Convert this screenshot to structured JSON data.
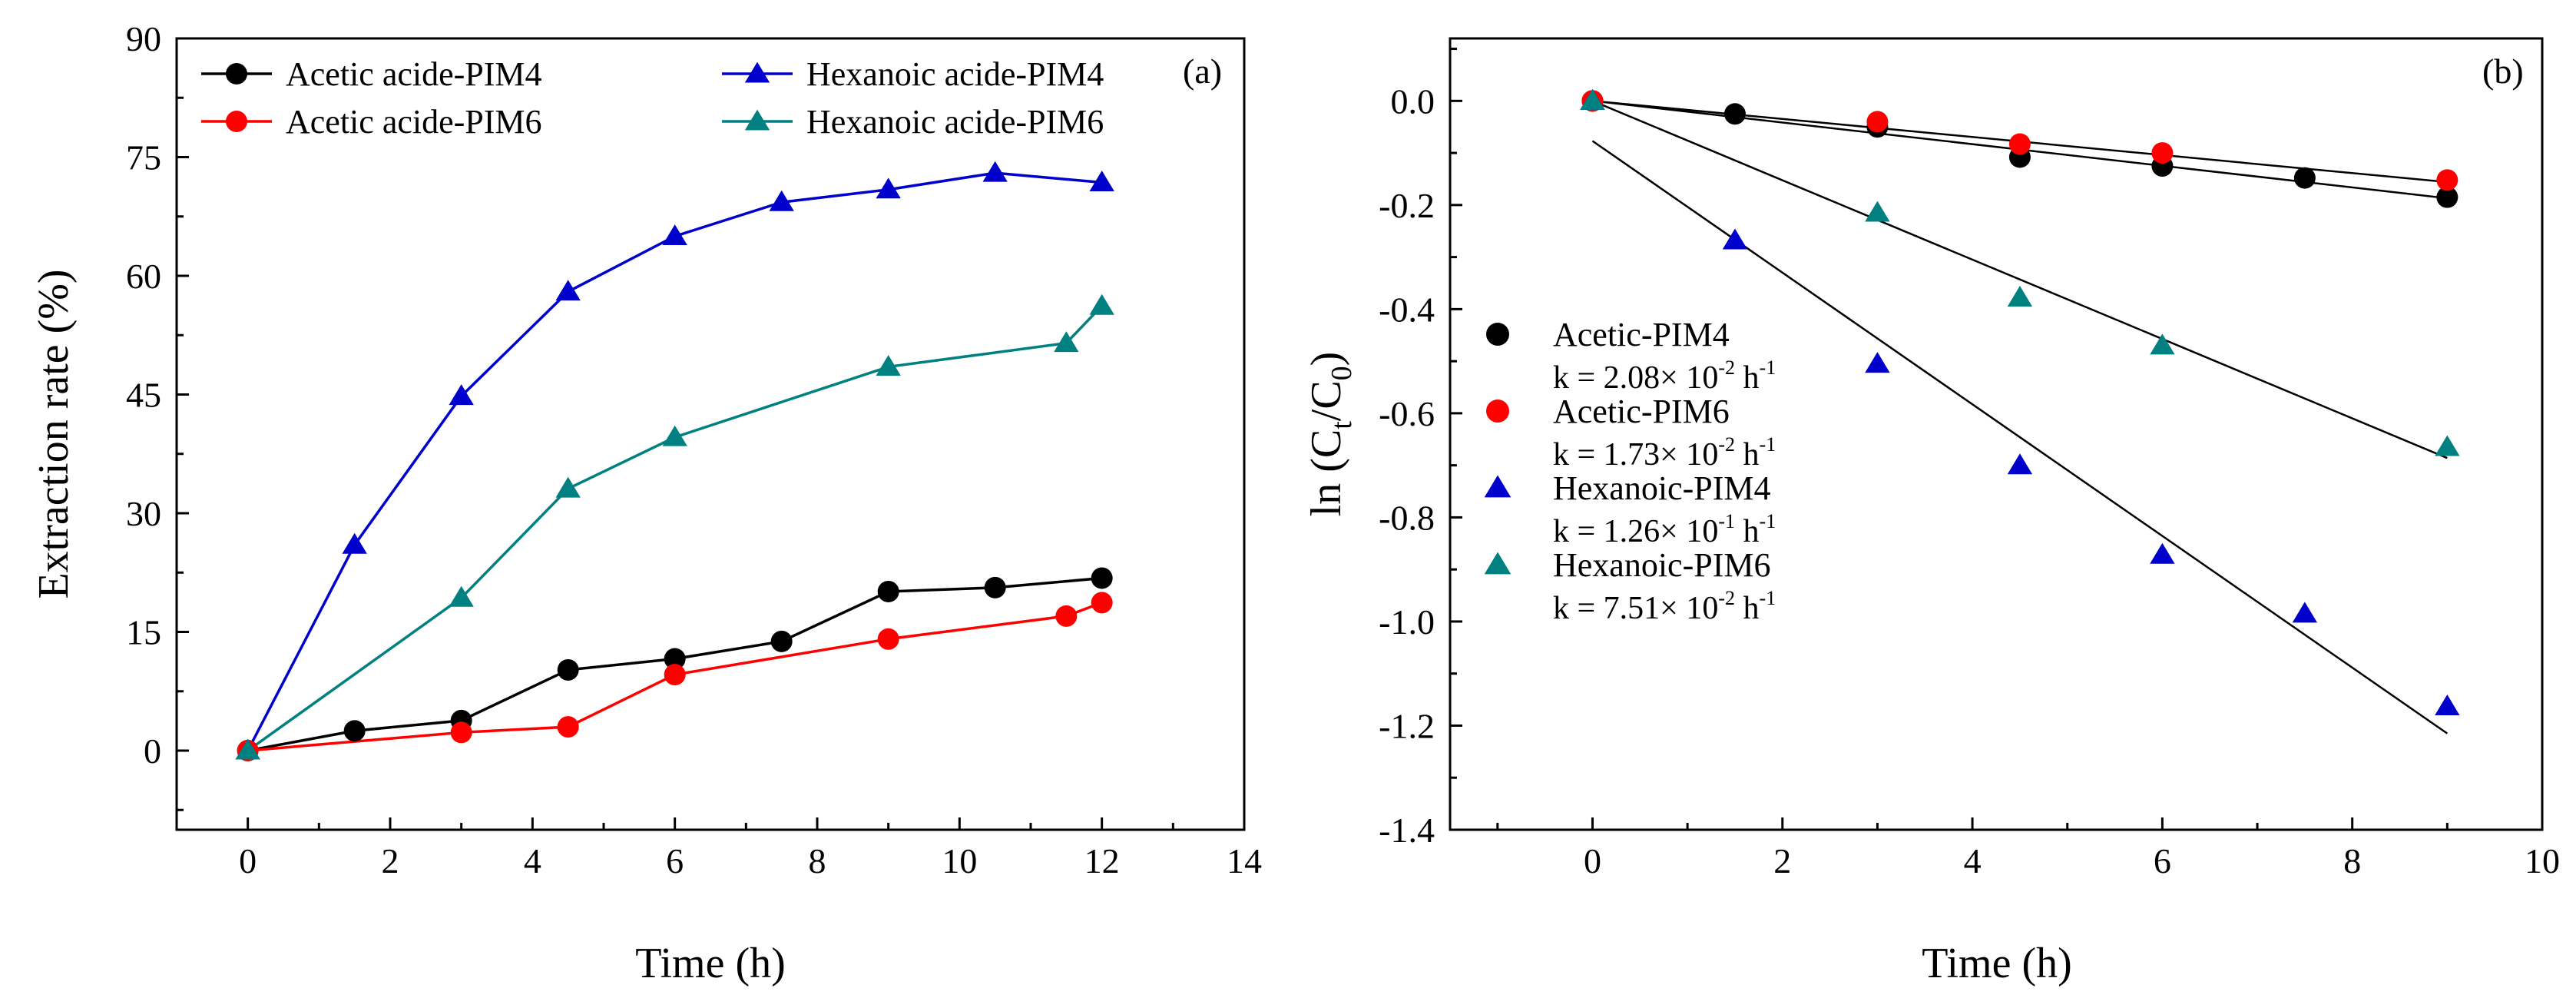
{
  "chart_data": [
    {
      "type": "line",
      "panel_label": "(a)",
      "xlabel": "Time (h)",
      "ylabel": "Extraction rate (%)",
      "xlim": [
        -1,
        14
      ],
      "ylim": [
        -10,
        90
      ],
      "xticks": [
        "0",
        "2",
        "4",
        "6",
        "8",
        "10",
        "12",
        "14"
      ],
      "yticks": [
        "0",
        "15",
        "30",
        "45",
        "60",
        "75",
        "90"
      ],
      "legend_position": "top",
      "series": [
        {
          "name": "Acetic acide-PIM4",
          "color": "#000000",
          "marker": "circle",
          "x": [
            0,
            1.5,
            3,
            4.5,
            6,
            7.5,
            9,
            10.5,
            12
          ],
          "y": [
            0,
            2.5,
            3.8,
            10.2,
            11.6,
            13.8,
            20.1,
            20.6,
            21.8
          ]
        },
        {
          "name": "Acetic acide-PIM6",
          "color": "#ff0000",
          "marker": "circle",
          "x": [
            0,
            3,
            4.5,
            6,
            9,
            11.5,
            12
          ],
          "y": [
            0,
            2.3,
            3.0,
            9.6,
            14.1,
            17.0,
            18.7
          ]
        },
        {
          "name": "Hexanoic acide-PIM4",
          "color": "#0000cc",
          "marker": "triangle",
          "x": [
            0,
            1.5,
            3,
            4.5,
            6,
            7.5,
            9,
            10.5,
            12
          ],
          "y": [
            0,
            26.0,
            44.8,
            58.0,
            65.0,
            69.3,
            70.9,
            73.0,
            71.8
          ]
        },
        {
          "name": "Hexanoic acide-PIM6",
          "color": "#008080",
          "marker": "triangle",
          "x": [
            0,
            3,
            4.5,
            6,
            9,
            11.5,
            12
          ],
          "y": [
            0,
            19.3,
            33.1,
            39.6,
            48.5,
            51.5,
            56.2
          ]
        }
      ]
    },
    {
      "type": "scatter",
      "panel_label": "(b)",
      "xlabel": "Time (h)",
      "ylabel_main": "ln (C",
      "ylabel_sub1": "t",
      "ylabel_mid": "/C",
      "ylabel_sub2": "0",
      "ylabel_end": ")",
      "xlim": [
        -1.5,
        10
      ],
      "ylim": [
        -1.4,
        0.12
      ],
      "xticks": [
        "0",
        "2",
        "4",
        "6",
        "8",
        "10"
      ],
      "yticks": [
        "0.0",
        "-0.2",
        "-0.4",
        "-0.6",
        "-0.8",
        "-1.0",
        "-1.2",
        "-1.4"
      ],
      "series": [
        {
          "name": "Acetic-PIM4",
          "color": "#000000",
          "marker": "circle",
          "k_prefix": "k = 2.08×  10",
          "k_exp": "-2",
          "k_unit": " h",
          "k_unit_exp": "-1",
          "x": [
            0,
            1.5,
            3,
            4.5,
            6,
            7.5,
            9
          ],
          "y": [
            0,
            -0.025,
            -0.05,
            -0.108,
            -0.125,
            -0.148,
            -0.185
          ],
          "fit": {
            "x": [
              0,
              9
            ],
            "y": [
              0,
              -0.187
            ]
          }
        },
        {
          "name": "Acetic-PIM6",
          "color": "#ff0000",
          "marker": "circle",
          "k_prefix": "k = 1.73×  10",
          "k_exp": "-2",
          "k_unit": " h",
          "k_unit_exp": "-1",
          "x": [
            0,
            3,
            4.5,
            6,
            9
          ],
          "y": [
            0,
            -0.04,
            -0.083,
            -0.1,
            -0.152
          ],
          "fit": {
            "x": [
              0,
              9
            ],
            "y": [
              0,
              -0.156
            ]
          }
        },
        {
          "name": "Hexanoic-PIM4",
          "color": "#0000cc",
          "marker": "triangle",
          "k_prefix": "k = 1.26×  10",
          "k_exp": "-1",
          "k_unit": " h",
          "k_unit_exp": "-1",
          "x": [
            0,
            1.5,
            3,
            4.5,
            6,
            7.5,
            9
          ],
          "y": [
            0,
            -0.268,
            -0.505,
            -0.7,
            -0.872,
            -0.985,
            -1.163
          ],
          "fit": {
            "x": [
              0,
              9
            ],
            "y": [
              -0.077,
              -1.215
            ]
          }
        },
        {
          "name": "Hexanoic-PIM6",
          "color": "#008080",
          "marker": "triangle",
          "k_prefix": "k = 7.51×  10",
          "k_exp": "-2",
          "k_unit": " h",
          "k_unit_exp": "-1",
          "x": [
            0,
            3,
            4.5,
            6,
            9
          ],
          "y": [
            0,
            -0.215,
            -0.378,
            -0.47,
            -0.665
          ],
          "fit": {
            "x": [
              0,
              9
            ],
            "y": [
              0,
              -0.686
            ]
          }
        }
      ]
    }
  ]
}
